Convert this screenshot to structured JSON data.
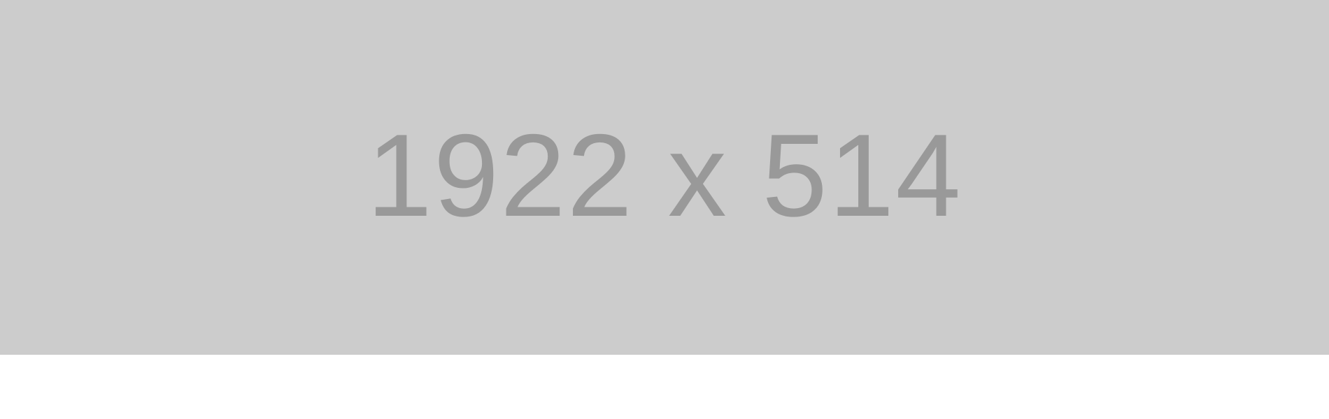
{
  "placeholder": {
    "label": "1922 x 514",
    "background_color": "#cccccc",
    "text_color": "#999999"
  }
}
